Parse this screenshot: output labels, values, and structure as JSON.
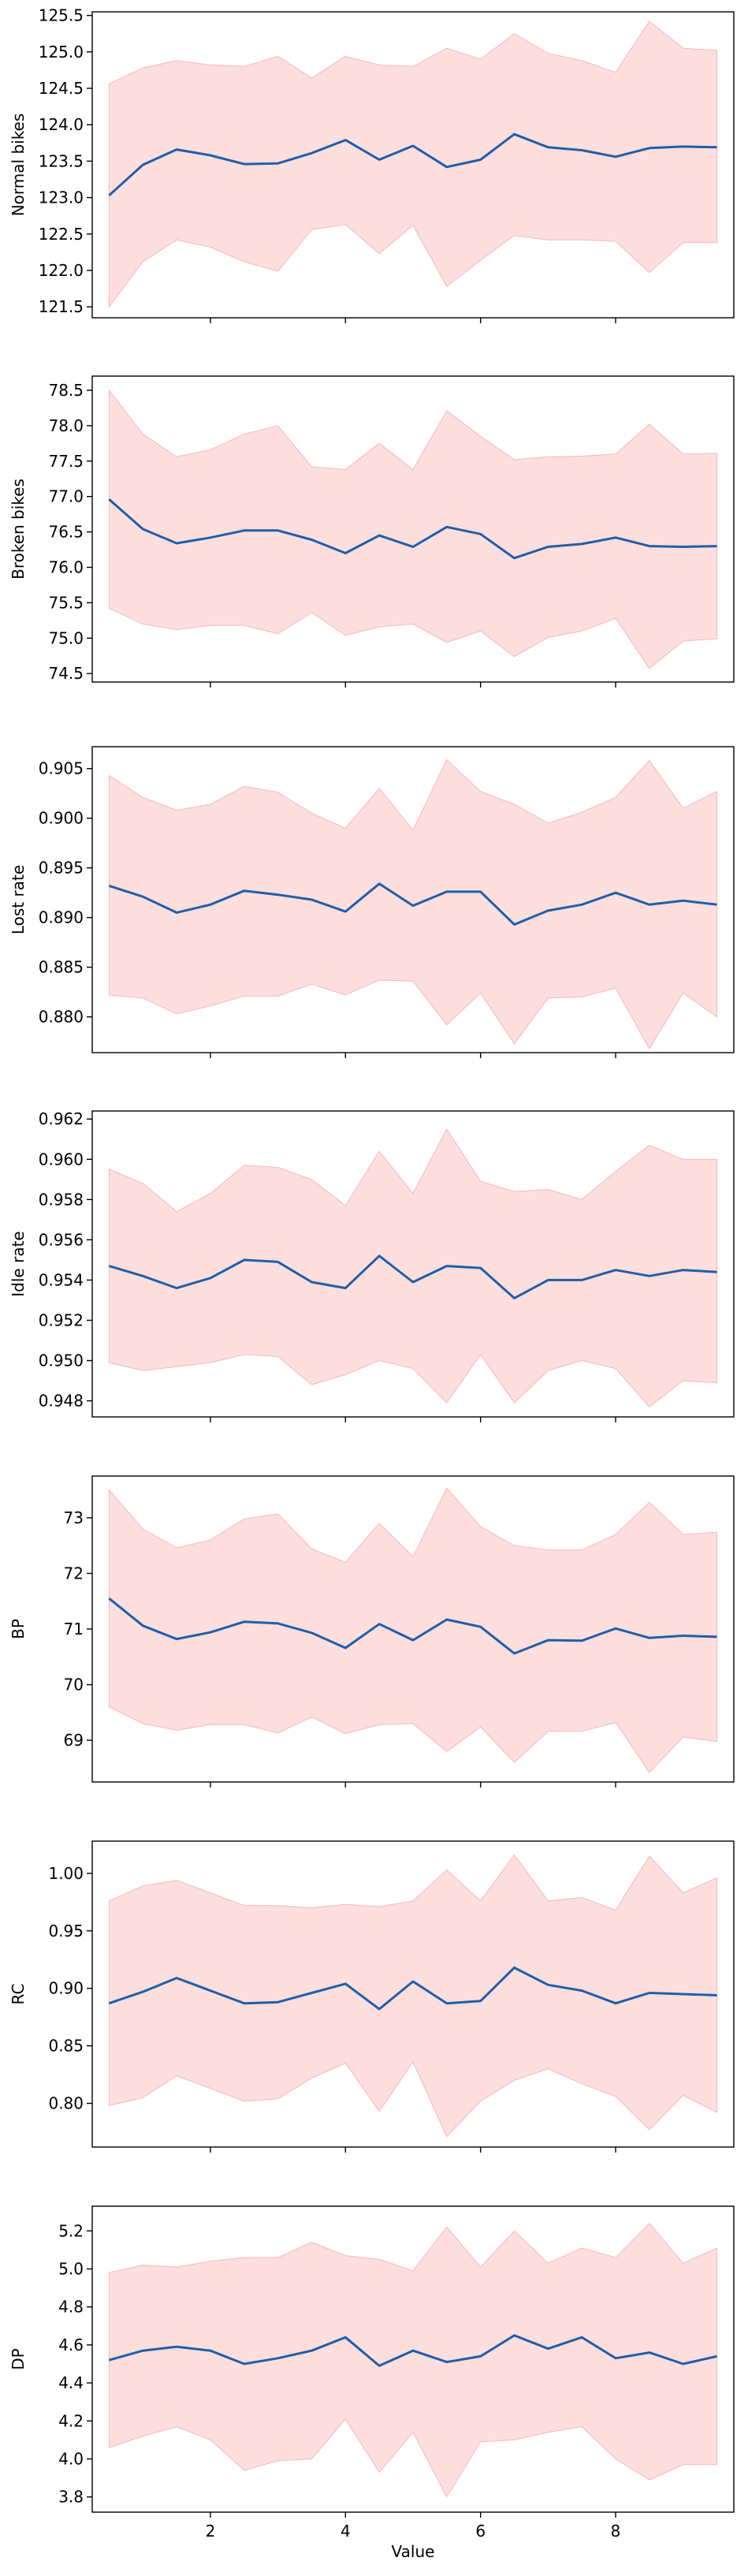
{
  "colors": {
    "line": "#1f5fa8",
    "band": "#ffdede",
    "band_edge": "#f5b8b8"
  },
  "chart_data": [
    {
      "type": "line",
      "ylabel": "Normal bikes",
      "xlabel": "",
      "xlim": [
        0.25,
        9.75
      ],
      "ylim": [
        121.35,
        125.55
      ],
      "xticks": [
        2,
        4,
        6,
        8
      ],
      "show_xticklabels": false,
      "yticks": [
        "121.5",
        "122.0",
        "122.5",
        "123.0",
        "123.5",
        "124.0",
        "124.5",
        "125.0",
        "125.5"
      ],
      "x": [
        0.5,
        1.0,
        1.5,
        2.0,
        2.5,
        3.0,
        3.5,
        4.0,
        4.5,
        5.0,
        5.5,
        6.0,
        6.5,
        7.0,
        7.5,
        8.0,
        8.5,
        9.0,
        9.5
      ],
      "mean": [
        123.03,
        123.45,
        123.66,
        123.58,
        123.46,
        123.47,
        123.61,
        123.79,
        123.52,
        123.71,
        123.42,
        123.52,
        123.87,
        123.69,
        123.65,
        123.56,
        123.68,
        123.7,
        123.69
      ],
      "upper": [
        124.56,
        124.78,
        124.88,
        124.82,
        124.8,
        124.94,
        124.64,
        124.94,
        124.82,
        124.8,
        125.05,
        124.9,
        125.25,
        124.98,
        124.88,
        124.72,
        125.42,
        125.05,
        125.02
      ],
      "lower": [
        121.5,
        122.12,
        122.42,
        122.32,
        122.12,
        121.99,
        122.56,
        122.63,
        122.23,
        122.62,
        121.78,
        122.14,
        122.48,
        122.42,
        122.42,
        122.4,
        121.97,
        122.38,
        122.38
      ]
    },
    {
      "type": "line",
      "ylabel": "Broken bikes",
      "xlabel": "",
      "xlim": [
        0.25,
        9.75
      ],
      "ylim": [
        74.38,
        78.7
      ],
      "xticks": [
        2,
        4,
        6,
        8
      ],
      "show_xticklabels": false,
      "yticks": [
        "74.5",
        "75.0",
        "75.5",
        "76.0",
        "76.5",
        "77.0",
        "77.5",
        "78.0",
        "78.5"
      ],
      "x": [
        0.5,
        1.0,
        1.5,
        2.0,
        2.5,
        3.0,
        3.5,
        4.0,
        4.5,
        5.0,
        5.5,
        6.0,
        6.5,
        7.0,
        7.5,
        8.0,
        8.5,
        9.0,
        9.5
      ],
      "mean": [
        76.96,
        76.54,
        76.34,
        76.42,
        76.52,
        76.52,
        76.39,
        76.2,
        76.45,
        76.29,
        76.57,
        76.47,
        76.13,
        76.29,
        76.33,
        76.42,
        76.3,
        76.29,
        76.3
      ],
      "upper": [
        78.5,
        77.88,
        77.56,
        77.66,
        77.88,
        78.0,
        77.42,
        77.38,
        77.75,
        77.38,
        78.21,
        77.85,
        77.52,
        77.56,
        77.57,
        77.6,
        78.02,
        77.6,
        77.61
      ],
      "lower": [
        75.42,
        75.2,
        75.12,
        75.18,
        75.18,
        75.06,
        75.36,
        75.04,
        75.16,
        75.2,
        74.94,
        75.1,
        74.74,
        75.01,
        75.1,
        75.28,
        74.57,
        74.96,
        74.99
      ]
    },
    {
      "type": "line",
      "ylabel": "Lost rate",
      "xlabel": "",
      "xlim": [
        0.25,
        9.75
      ],
      "ylim": [
        0.8764,
        0.9072
      ],
      "xticks": [
        2,
        4,
        6,
        8
      ],
      "show_xticklabels": false,
      "yticks": [
        "0.880",
        "0.885",
        "0.890",
        "0.895",
        "0.900",
        "0.905"
      ],
      "x": [
        0.5,
        1.0,
        1.5,
        2.0,
        2.5,
        3.0,
        3.5,
        4.0,
        4.5,
        5.0,
        5.5,
        6.0,
        6.5,
        7.0,
        7.5,
        8.0,
        8.5,
        9.0,
        9.5
      ],
      "mean": [
        0.8932,
        0.8921,
        0.8905,
        0.8913,
        0.8927,
        0.8923,
        0.8918,
        0.8906,
        0.8934,
        0.8912,
        0.8926,
        0.8926,
        0.8893,
        0.8907,
        0.8913,
        0.8925,
        0.8913,
        0.8917,
        0.8913
      ],
      "upper": [
        0.9043,
        0.9021,
        0.9008,
        0.9014,
        0.9032,
        0.9026,
        0.9005,
        0.899,
        0.903,
        0.8988,
        0.9059,
        0.9027,
        0.9014,
        0.8995,
        0.9006,
        0.9021,
        0.9058,
        0.901,
        0.9027
      ],
      "lower": [
        0.8822,
        0.8819,
        0.8803,
        0.8811,
        0.8821,
        0.8821,
        0.8833,
        0.8822,
        0.8837,
        0.8836,
        0.8792,
        0.8824,
        0.8773,
        0.8819,
        0.882,
        0.8829,
        0.8768,
        0.8824,
        0.88
      ]
    },
    {
      "type": "line",
      "ylabel": "Idle rate",
      "xlabel": "",
      "xlim": [
        0.25,
        9.75
      ],
      "ylim": [
        0.9472,
        0.9624
      ],
      "xticks": [
        2,
        4,
        6,
        8
      ],
      "show_xticklabels": false,
      "yticks": [
        "0.948",
        "0.950",
        "0.952",
        "0.954",
        "0.956",
        "0.958",
        "0.960",
        "0.962"
      ],
      "x": [
        0.5,
        1.0,
        1.5,
        2.0,
        2.5,
        3.0,
        3.5,
        4.0,
        4.5,
        5.0,
        5.5,
        6.0,
        6.5,
        7.0,
        7.5,
        8.0,
        8.5,
        9.0,
        9.5
      ],
      "mean": [
        0.9547,
        0.9542,
        0.9536,
        0.9541,
        0.955,
        0.9549,
        0.9539,
        0.9536,
        0.9552,
        0.9539,
        0.9547,
        0.9546,
        0.9531,
        0.954,
        0.954,
        0.9545,
        0.9542,
        0.9545,
        0.9544
      ],
      "upper": [
        0.9595,
        0.9588,
        0.9574,
        0.9583,
        0.9597,
        0.9596,
        0.959,
        0.9577,
        0.9604,
        0.9583,
        0.9615,
        0.9589,
        0.9584,
        0.9585,
        0.958,
        0.9594,
        0.9607,
        0.96,
        0.96
      ],
      "lower": [
        0.9499,
        0.9495,
        0.9497,
        0.9499,
        0.9503,
        0.9502,
        0.9488,
        0.9493,
        0.95,
        0.9496,
        0.9479,
        0.9503,
        0.9479,
        0.9495,
        0.95,
        0.9496,
        0.9477,
        0.949,
        0.9489
      ]
    },
    {
      "type": "line",
      "ylabel": "BP",
      "xlabel": "",
      "xlim": [
        0.25,
        9.75
      ],
      "ylim": [
        68.25,
        73.75
      ],
      "xticks": [
        2,
        4,
        6,
        8
      ],
      "show_xticklabels": false,
      "yticks": [
        "69",
        "70",
        "71",
        "72",
        "73"
      ],
      "x": [
        0.5,
        1.0,
        1.5,
        2.0,
        2.5,
        3.0,
        3.5,
        4.0,
        4.5,
        5.0,
        5.5,
        6.0,
        6.5,
        7.0,
        7.5,
        8.0,
        8.5,
        9.0,
        9.5
      ],
      "mean": [
        71.55,
        71.06,
        70.82,
        70.94,
        71.13,
        71.1,
        70.93,
        70.66,
        71.09,
        70.8,
        71.17,
        71.04,
        70.56,
        70.8,
        70.79,
        71.01,
        70.84,
        70.88,
        70.86
      ],
      "upper": [
        73.5,
        72.8,
        72.46,
        72.6,
        72.98,
        73.07,
        72.44,
        72.2,
        72.9,
        72.3,
        73.53,
        72.84,
        72.5,
        72.42,
        72.42,
        72.7,
        73.28,
        72.7,
        72.74
      ],
      "lower": [
        69.6,
        69.3,
        69.18,
        69.28,
        69.28,
        69.13,
        69.42,
        69.12,
        69.28,
        69.3,
        68.8,
        69.24,
        68.6,
        69.16,
        69.16,
        69.32,
        68.42,
        69.06,
        68.98
      ]
    },
    {
      "type": "line",
      "ylabel": "RC",
      "xlabel": "",
      "xlim": [
        0.25,
        9.75
      ],
      "ylim": [
        0.762,
        1.028
      ],
      "xticks": [
        2,
        4,
        6,
        8
      ],
      "show_xticklabels": false,
      "yticks": [
        "0.80",
        "0.85",
        "0.90",
        "0.95",
        "1.00"
      ],
      "x": [
        0.5,
        1.0,
        1.5,
        2.0,
        2.5,
        3.0,
        3.5,
        4.0,
        4.5,
        5.0,
        5.5,
        6.0,
        6.5,
        7.0,
        7.5,
        8.0,
        8.5,
        9.0,
        9.5
      ],
      "mean": [
        0.887,
        0.897,
        0.909,
        0.898,
        0.887,
        0.888,
        0.896,
        0.904,
        0.882,
        0.906,
        0.887,
        0.889,
        0.918,
        0.903,
        0.898,
        0.887,
        0.896,
        0.895,
        0.894
      ],
      "upper": [
        0.976,
        0.989,
        0.994,
        0.983,
        0.972,
        0.972,
        0.97,
        0.973,
        0.971,
        0.976,
        1.003,
        0.976,
        1.016,
        0.976,
        0.979,
        0.968,
        1.015,
        0.983,
        0.996
      ],
      "lower": [
        0.798,
        0.805,
        0.824,
        0.813,
        0.802,
        0.804,
        0.822,
        0.835,
        0.793,
        0.836,
        0.771,
        0.802,
        0.82,
        0.83,
        0.817,
        0.806,
        0.777,
        0.807,
        0.792
      ]
    },
    {
      "type": "line",
      "ylabel": "DP",
      "xlabel": "Value",
      "xlim": [
        0.25,
        9.75
      ],
      "ylim": [
        3.72,
        5.33
      ],
      "xticks": [
        2,
        4,
        6,
        8
      ],
      "show_xticklabels": true,
      "yticks": [
        "3.8",
        "4.0",
        "4.2",
        "4.4",
        "4.6",
        "4.8",
        "5.0",
        "5.2"
      ],
      "x": [
        0.5,
        1.0,
        1.5,
        2.0,
        2.5,
        3.0,
        3.5,
        4.0,
        4.5,
        5.0,
        5.5,
        6.0,
        6.5,
        7.0,
        7.5,
        8.0,
        8.5,
        9.0,
        9.5
      ],
      "mean": [
        4.52,
        4.57,
        4.59,
        4.57,
        4.5,
        4.53,
        4.57,
        4.64,
        4.49,
        4.57,
        4.51,
        4.54,
        4.65,
        4.58,
        4.64,
        4.53,
        4.56,
        4.5,
        4.54
      ],
      "upper": [
        4.98,
        5.02,
        5.01,
        5.04,
        5.06,
        5.06,
        5.14,
        5.07,
        5.05,
        4.99,
        5.22,
        5.01,
        5.2,
        5.03,
        5.11,
        5.06,
        5.24,
        5.03,
        5.11
      ],
      "lower": [
        4.06,
        4.12,
        4.17,
        4.1,
        3.94,
        3.99,
        4.0,
        4.21,
        3.93,
        4.14,
        3.8,
        4.09,
        4.1,
        4.14,
        4.17,
        4.0,
        3.89,
        3.97,
        3.97
      ]
    }
  ]
}
